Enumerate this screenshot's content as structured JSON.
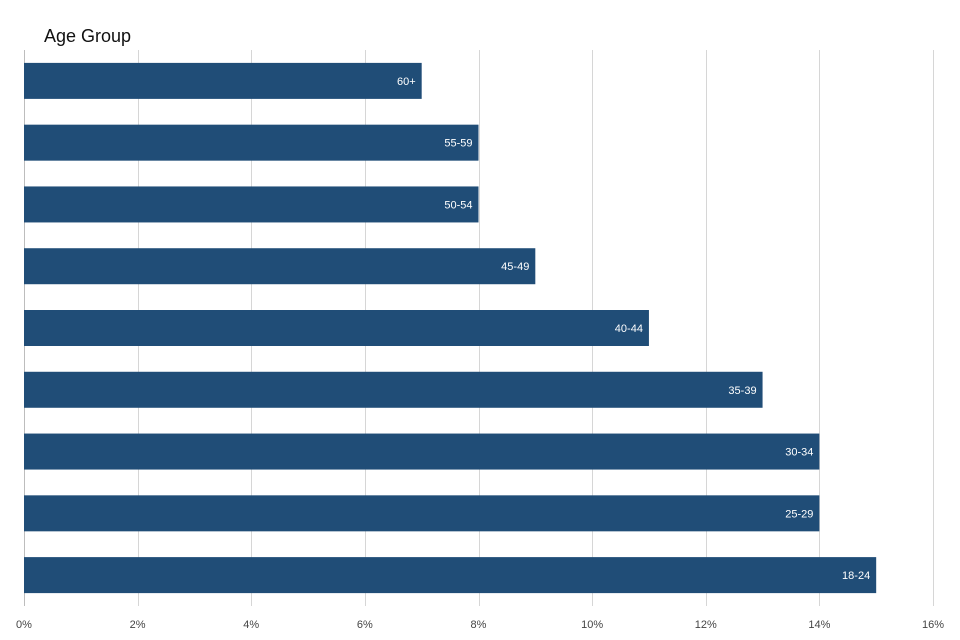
{
  "chart_data": {
    "type": "bar",
    "orientation": "horizontal",
    "title": "Age Group",
    "xlabel": "",
    "ylabel": "",
    "bar_color": "#204d77",
    "grid": true,
    "legend": "none",
    "xlim": [
      0,
      16
    ],
    "x_ticks": [
      0,
      2,
      4,
      6,
      8,
      10,
      12,
      14,
      16
    ],
    "x_tick_labels": [
      "0%",
      "2%",
      "4%",
      "6%",
      "8%",
      "10%",
      "12%",
      "14%",
      "16%"
    ],
    "categories": [
      "60+",
      "55-59",
      "50-54",
      "45-49",
      "40-44",
      "35-39",
      "30-34",
      "25-29",
      "18-24"
    ],
    "values": [
      7,
      8,
      8,
      9,
      11,
      13,
      14,
      14,
      15
    ],
    "value_unit": "%"
  }
}
